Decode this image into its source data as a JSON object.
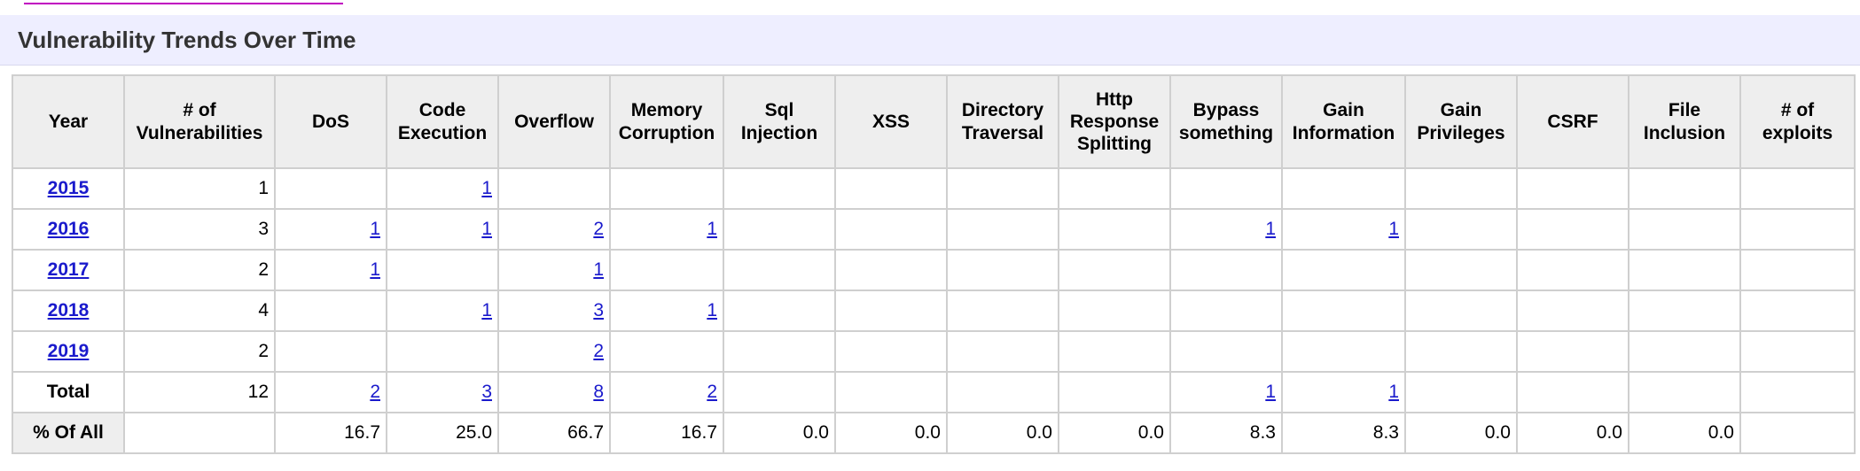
{
  "header": {
    "title": "Vulnerability Trends Over Time"
  },
  "table": {
    "headers": [
      "Year",
      "# of Vulnerabilities",
      "DoS",
      "Code Execution",
      "Overflow",
      "Memory Corruption",
      "Sql Injection",
      "XSS",
      "Directory Traversal",
      "Http Response Splitting",
      "Bypass something",
      "Gain Information",
      "Gain Privileges",
      "CSRF",
      "File Inclusion",
      "# of exploits"
    ],
    "rows": [
      [
        "2015",
        "1",
        null,
        "1",
        null,
        null,
        null,
        null,
        null,
        null,
        null,
        null,
        null,
        null,
        null,
        null
      ],
      [
        "2016",
        "3",
        "1",
        "1",
        "2",
        "1",
        null,
        null,
        null,
        null,
        "1",
        "1",
        null,
        null,
        null,
        null
      ],
      [
        "2017",
        "2",
        "1",
        null,
        "1",
        null,
        null,
        null,
        null,
        null,
        null,
        null,
        null,
        null,
        null,
        null
      ],
      [
        "2018",
        "4",
        null,
        "1",
        "3",
        "1",
        null,
        null,
        null,
        null,
        null,
        null,
        null,
        null,
        null,
        null
      ],
      [
        "2019",
        "2",
        null,
        null,
        "2",
        null,
        null,
        null,
        null,
        null,
        null,
        null,
        null,
        null,
        null,
        null
      ],
      [
        "Total",
        "12",
        "2",
        "3",
        "8",
        "2",
        null,
        null,
        null,
        null,
        "1",
        "1",
        null,
        null,
        null,
        null
      ],
      [
        "% Of All",
        null,
        "16.7",
        "25.0",
        "66.7",
        "16.7",
        "0.0",
        "0.0",
        "0.0",
        "0.0",
        "8.3",
        "8.3",
        "0.0",
        "0.0",
        "0.0",
        null
      ]
    ]
  }
}
